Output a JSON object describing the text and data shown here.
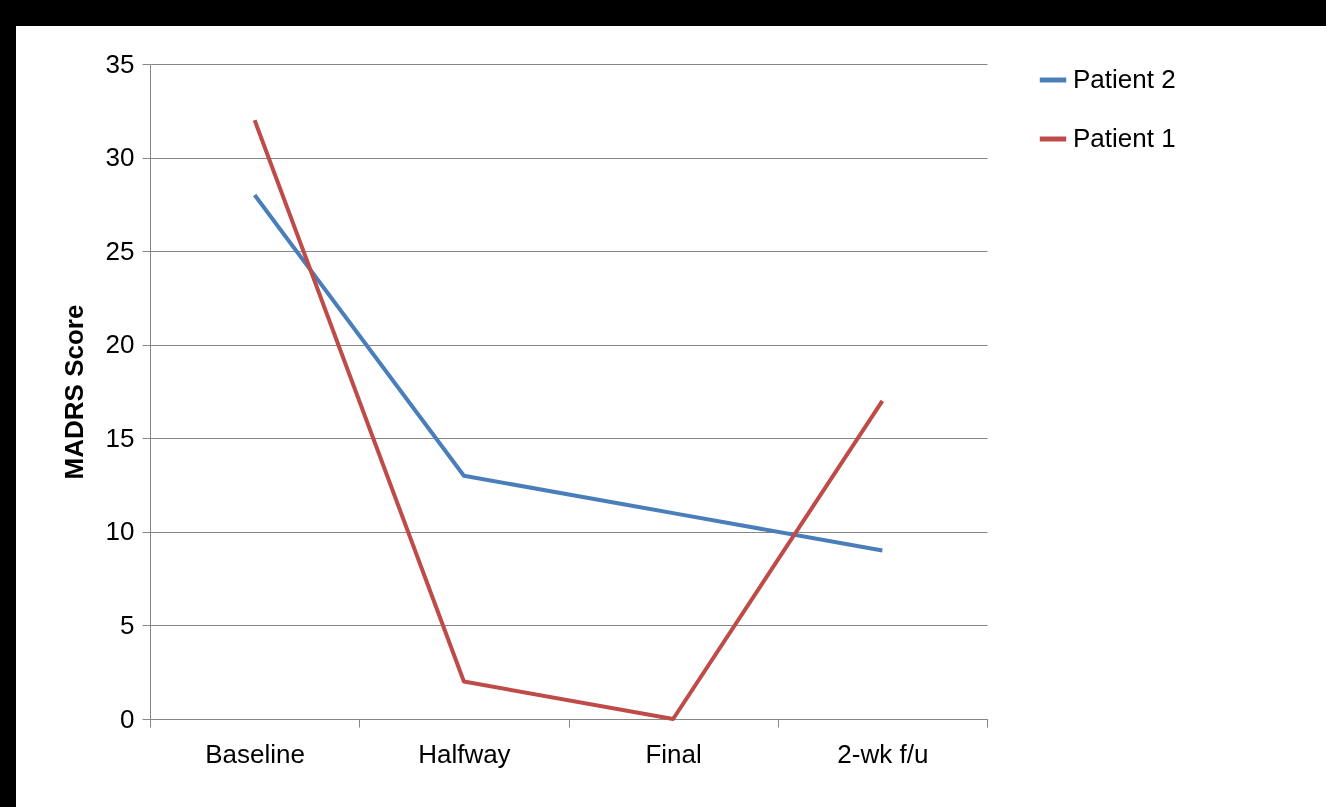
{
  "chart_data": {
    "type": "line",
    "ylabel": "MADRS Score",
    "categories": [
      "Baseline",
      "Halfway",
      "Final",
      "2-wk f/u"
    ],
    "series": [
      {
        "name": "Patient 2",
        "color": "#4a7ebb",
        "values": [
          28,
          13,
          11,
          9
        ]
      },
      {
        "name": "Patient 1",
        "color": "#be4b48",
        "values": [
          32,
          2,
          0,
          17
        ]
      }
    ],
    "ylim": [
      0,
      35
    ],
    "yticks": [
      0,
      5,
      10,
      15,
      20,
      25,
      30,
      35
    ],
    "grid": "y",
    "legend": "right",
    "marker": "none",
    "line_style": "solid"
  }
}
